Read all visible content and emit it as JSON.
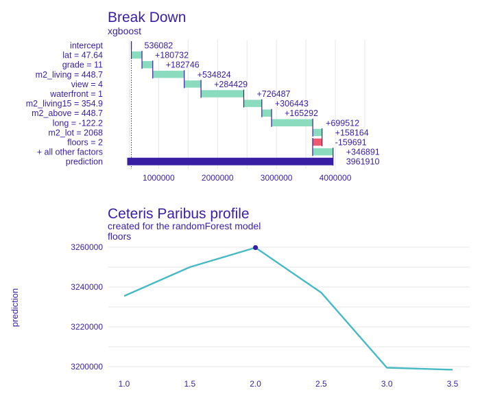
{
  "chart_data": [
    {
      "type": "bar",
      "subtype": "waterfall",
      "title": "Break Down",
      "subtitle": "xgboost",
      "categories": [
        "intercept",
        "lat = 47.64",
        "grade = 11",
        "m2_living = 448.7",
        "view = 4",
        "waterfront = 1",
        "m2_living15 = 354.9",
        "m2_above = 448.7",
        "long = -122.2",
        "m2_lot = 2068",
        "floors = 2",
        "+ all other factors",
        "prediction"
      ],
      "values": [
        536082,
        180732,
        182746,
        534824,
        284429,
        726487,
        306443,
        165292,
        699512,
        158164,
        -159691,
        346891,
        3961910
      ],
      "value_labels": [
        "536082",
        "+180732",
        "+182746",
        "+534824",
        "+284429",
        "+726487",
        "+306443",
        "+165292",
        "+699512",
        "+158164",
        "-159691",
        "+346891",
        "3961910"
      ],
      "x_ticks": [
        "1000000",
        "2000000",
        "3000000",
        "4000000"
      ],
      "xlim": [
        0,
        4500000
      ],
      "colors": {
        "positive": "#8bdcbe",
        "negative": "#f05a71",
        "prediction": "#371ea3",
        "connector": "#371ea3",
        "text": "#371ea3"
      }
    },
    {
      "type": "line",
      "title": "Ceteris Paribus profile",
      "subtitle": "created for the randomForest model",
      "variable": "floors",
      "ylabel": "prediction",
      "x": [
        1.0,
        1.5,
        2.0,
        2.5,
        3.0,
        3.5
      ],
      "y": [
        3235500,
        3250000,
        3259800,
        3237200,
        3199500,
        3198500
      ],
      "observation": {
        "x": 2.0,
        "y": 3259800
      },
      "x_ticks": [
        "1.0",
        "1.5",
        "2.0",
        "2.5",
        "3.0",
        "3.5"
      ],
      "y_ticks": [
        "3200000",
        "3220000",
        "3240000",
        "3260000"
      ],
      "xlim": [
        0.9,
        3.55
      ],
      "ylim": [
        3195000,
        3263000
      ],
      "colors": {
        "line": "#46bac2",
        "point": "#371ea3",
        "text": "#371ea3"
      }
    }
  ]
}
